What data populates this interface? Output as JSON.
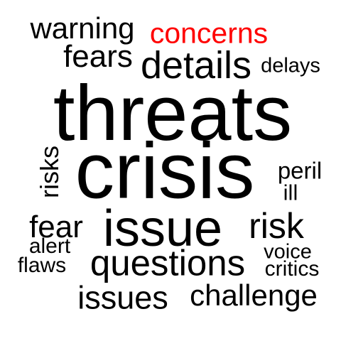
{
  "colors": {
    "background": "#ffffff",
    "text": "#000000",
    "accent": "#ff0000"
  },
  "words": {
    "warning": "warning",
    "concerns": "concerns",
    "fears": "fears",
    "details": "details",
    "delays": "delays",
    "threats": "threats",
    "risks": "risks",
    "crisis": "crisis",
    "peril": "peril",
    "ill": "ill",
    "fear": "fear",
    "issue": "issue",
    "risk": "risk",
    "alert": "alert",
    "voice": "voice",
    "flaws": "flaws",
    "questions": "questions",
    "critics": "critics",
    "issues": "issues",
    "challenge": "challenge"
  }
}
